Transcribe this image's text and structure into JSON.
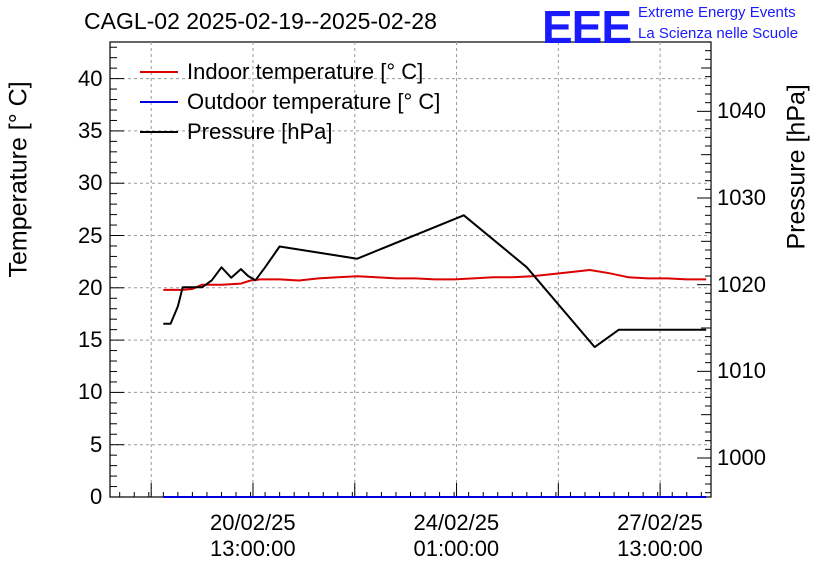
{
  "title": "CAGL-02 2025-02-19--2025-02-28",
  "logo": {
    "mark": "EEE",
    "line1": "Extreme Energy Events",
    "line2": "La Scienza nelle Scuole",
    "color": "#1a1aff"
  },
  "chart_data": {
    "type": "line",
    "title": "CAGL-02 2025-02-19--2025-02-28",
    "xlabel": "",
    "ylabel_left": "Temperature [° C]",
    "ylabel_right": "Pressure [hPa]",
    "ylim_left": [
      0,
      43.5
    ],
    "ylim_right": [
      995.5,
      1048
    ],
    "xlim_hours": [
      -22,
      226
    ],
    "grid": true,
    "legend_position": "top-left",
    "x_ticks": [
      {
        "hours": 37,
        "date": "20/02/25",
        "time": "13:00:00"
      },
      {
        "hours": 121,
        "date": "24/02/25",
        "time": "01:00:00"
      },
      {
        "hours": 205,
        "date": "27/02/25",
        "time": "13:00:00"
      }
    ],
    "y_ticks_left": [
      0,
      5,
      10,
      15,
      20,
      25,
      30,
      35,
      40
    ],
    "y_ticks_right": [
      1000,
      1010,
      1020,
      1030,
      1040
    ],
    "series": [
      {
        "name": "Indoor temperature [° C]",
        "axis": "left",
        "color": "#dd0000",
        "x": [
          0,
          4,
          8,
          12,
          16,
          24,
          32,
          36,
          40,
          48,
          56,
          64,
          72,
          80,
          88,
          96,
          104,
          112,
          120,
          128,
          136,
          144,
          152,
          160,
          168,
          176,
          184,
          192,
          200,
          208,
          216,
          224
        ],
        "y": [
          19.8,
          19.8,
          19.8,
          19.9,
          20.3,
          20.3,
          20.4,
          20.7,
          20.8,
          20.8,
          20.7,
          20.9,
          21.0,
          21.1,
          21.0,
          20.9,
          20.9,
          20.8,
          20.8,
          20.9,
          21.0,
          21.0,
          21.1,
          21.3,
          21.5,
          21.7,
          21.4,
          21.0,
          20.9,
          20.9,
          20.8,
          20.8
        ]
      },
      {
        "name": "Outdoor temperature [° C]",
        "axis": "left",
        "color": "#0000dd",
        "x": [
          0,
          224
        ],
        "y": [
          0,
          0
        ]
      },
      {
        "name": "Pressure [hPa]",
        "axis": "right",
        "color": "#000000",
        "x": [
          0,
          3,
          6,
          8,
          12,
          16,
          20,
          24,
          28,
          32,
          35,
          38,
          42,
          48,
          80,
          124,
          150,
          178,
          188,
          224
        ],
        "y": [
          1015.5,
          1015.5,
          1017.5,
          1019.7,
          1019.7,
          1019.7,
          1020.5,
          1022.0,
          1020.8,
          1021.8,
          1021.0,
          1020.5,
          1022.0,
          1024.4,
          1023.0,
          1028.0,
          1022.0,
          1012.8,
          1014.8,
          1014.8
        ]
      }
    ]
  }
}
